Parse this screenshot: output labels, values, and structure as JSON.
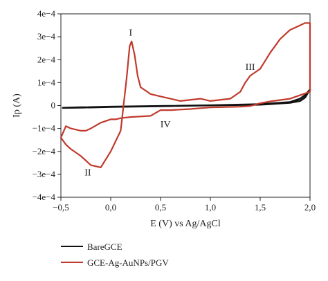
{
  "chart_data": {
    "type": "line",
    "xlabel": "E (V) vs Ag/AgCl",
    "ylabel": "Ip (A)",
    "xlim": [
      -0.5,
      2.0
    ],
    "ylim": [
      -0.0004,
      0.0004
    ],
    "x_ticks": [
      -0.5,
      0.0,
      0.5,
      1.0,
      1.5,
      2.0
    ],
    "x_tick_labels": [
      "−0,5",
      "0,0",
      "0,5",
      "1,0",
      "1,5",
      "2,0"
    ],
    "y_ticks": [
      0.0004,
      0.0003,
      0.0002,
      0.0001,
      0,
      -0.0001,
      -0.0002,
      -0.0003,
      -0.0004
    ],
    "y_tick_labels": [
      "4e−4",
      "3e−4",
      "2e−4",
      "1e−4",
      "0",
      "−1e−4",
      "−2e−4",
      "−3e−4",
      "−4e−4"
    ],
    "grid": false,
    "legend_position": "bottom-left",
    "series": [
      {
        "name": "BareGCE",
        "color": "#111111",
        "x": [
          -0.48,
          -0.3,
          0.0,
          0.5,
          1.0,
          1.5,
          1.8,
          1.9,
          1.95,
          2.0,
          1.95,
          1.9,
          1.8,
          1.5,
          1.0,
          0.5,
          0.0,
          -0.3,
          -0.48
        ],
        "y": [
          -1e-05,
          -8e-06,
          -5e-06,
          -2e-06,
          1e-06,
          4e-06,
          1.2e-05,
          2e-05,
          3.5e-05,
          7e-05,
          4.5e-05,
          3e-05,
          1.5e-05,
          6e-06,
          1e-06,
          -3e-06,
          -6e-06,
          -9e-06,
          -1e-05
        ]
      },
      {
        "name": "GCE-Ag-AuNPs/PGV",
        "color": "#c0392b",
        "x": [
          -0.5,
          -0.45,
          -0.4,
          -0.3,
          -0.2,
          -0.1,
          0.0,
          0.1,
          0.13,
          0.16,
          0.19,
          0.21,
          0.24,
          0.27,
          0.3,
          0.4,
          0.5,
          0.7,
          0.9,
          1.0,
          1.2,
          1.3,
          1.35,
          1.4,
          1.5,
          1.6,
          1.7,
          1.8,
          1.9,
          1.95,
          2.0,
          2.0,
          1.9,
          1.8,
          1.6,
          1.5,
          1.4,
          1.3,
          1.0,
          0.8,
          0.6,
          0.5,
          0.4,
          0.2,
          0.1,
          0.05,
          0.0,
          -0.1,
          -0.2,
          -0.25,
          -0.3,
          -0.4,
          -0.45,
          -0.5
        ],
        "y": [
          -0.00014,
          -0.00017,
          -0.00019,
          -0.00022,
          -0.00026,
          -0.00027,
          -0.0002,
          -0.00011,
          5e-06,
          0.00012,
          0.00026,
          0.00028,
          0.00022,
          0.00013,
          8e-05,
          5e-05,
          4e-05,
          2e-05,
          3e-05,
          2e-05,
          3e-05,
          6e-05,
          0.0001,
          0.00013,
          0.00016,
          0.00023,
          0.00029,
          0.00033,
          0.00035,
          0.00036,
          0.00036,
          6e-05,
          4.5e-05,
          3e-05,
          1.8e-05,
          1e-05,
          -2e-06,
          -5e-06,
          -8e-06,
          -1.5e-05,
          -2e-05,
          -2e-05,
          -4.5e-05,
          -5e-05,
          -5.5e-05,
          -6e-05,
          -6e-05,
          -7.5e-05,
          -0.0001,
          -0.00011,
          -0.00011,
          -0.0001,
          -9e-05,
          -0.00014
        ]
      }
    ],
    "annotations": [
      {
        "label": "I",
        "x": 0.2,
        "y": 0.000305
      },
      {
        "label": "II",
        "x": -0.23,
        "y": -0.000305
      },
      {
        "label": "III",
        "x": 1.4,
        "y": 0.000155
      },
      {
        "label": "IV",
        "x": 0.55,
        "y": -9.5e-05
      }
    ]
  }
}
